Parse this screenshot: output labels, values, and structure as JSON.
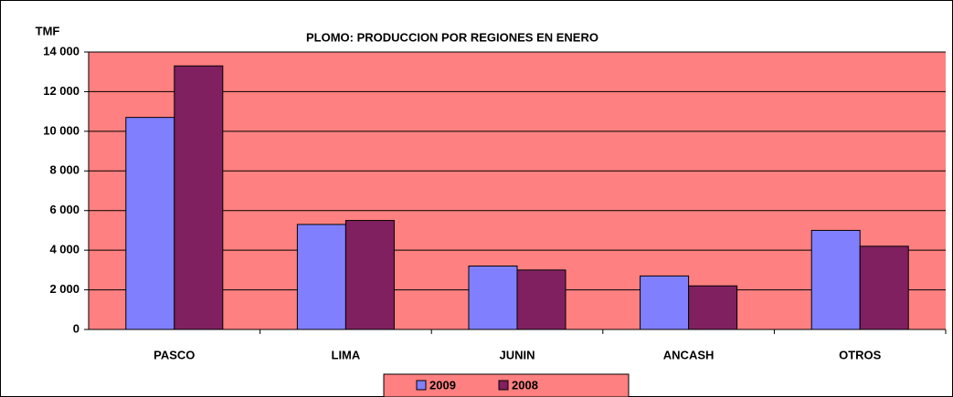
{
  "chart_data": {
    "type": "bar",
    "title": "PLOMO: PRODUCCION POR REGIONES EN ENERO",
    "y_label": "TMF",
    "categories": [
      "PASCO",
      "LIMA",
      "JUNIN",
      "ANCASH",
      "OTROS"
    ],
    "series": [
      {
        "name": "2009",
        "color": "#8080ff",
        "values": [
          10700,
          5300,
          3200,
          2700,
          5000
        ]
      },
      {
        "name": "2008",
        "color": "#802060",
        "values": [
          13300,
          5500,
          3000,
          2200,
          4200
        ]
      }
    ],
    "ylim": [
      0,
      14000
    ],
    "yticks": [
      0,
      {
        "value": 2000,
        "label": "2 000"
      },
      {
        "value": 4000,
        "label": "4 000"
      },
      {
        "value": 6000,
        "label": "6 000"
      },
      {
        "value": 8000,
        "label": "8 000"
      },
      {
        "value": 10000,
        "label": "10 000"
      },
      {
        "value": 12000,
        "label": "12 000"
      },
      {
        "value": 14000,
        "label": "14 000"
      }
    ],
    "grid": true,
    "plot_background": "#ff8080",
    "legend_position": "bottom"
  }
}
